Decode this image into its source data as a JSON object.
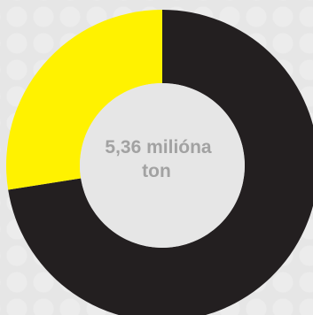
{
  "chart_data": {
    "type": "pie",
    "style": "donut",
    "categories": [
      "black segment",
      "yellow segment"
    ],
    "values": [
      72.5,
      27.5
    ],
    "colors": [
      "#231f20",
      "#fff200"
    ],
    "start": "12 o'clock",
    "direction": "clockwise",
    "center_label": {
      "line1": "5,36 milióna",
      "line2": "ton"
    },
    "legend": "none",
    "grid": false
  }
}
